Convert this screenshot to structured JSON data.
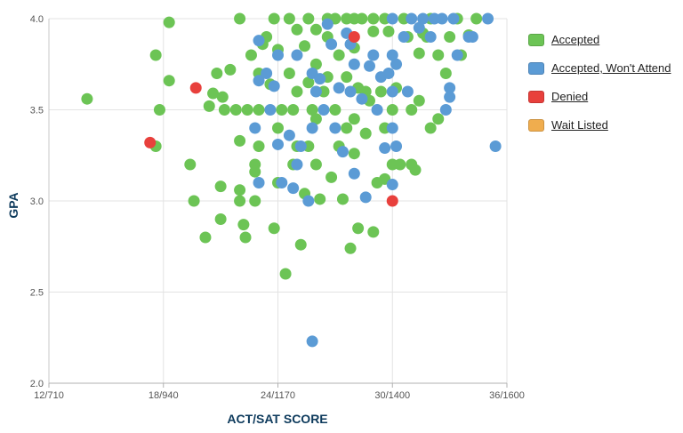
{
  "chart_data": {
    "type": "scatter",
    "xlabel": "ACT/SAT SCORE",
    "ylabel": "GPA",
    "x_ticks": [
      {
        "value": 12,
        "label": "12/710"
      },
      {
        "value": 18,
        "label": "18/940"
      },
      {
        "value": 24,
        "label": "24/1170"
      },
      {
        "value": 30,
        "label": "30/1400"
      },
      {
        "value": 36,
        "label": "36/1600"
      }
    ],
    "y_ticks": [
      {
        "value": 2.0,
        "label": "2.0"
      },
      {
        "value": 2.5,
        "label": "2.5"
      },
      {
        "value": 3.0,
        "label": "3.0"
      },
      {
        "value": 3.5,
        "label": "3.5"
      },
      {
        "value": 4.0,
        "label": "4.0"
      }
    ],
    "xlim": [
      12,
      36
    ],
    "ylim": [
      2.0,
      4.0
    ],
    "grid": true,
    "legend_position": "right",
    "series": [
      {
        "name": "Accepted",
        "color": "#6cc455",
        "points": [
          [
            14.0,
            3.56
          ],
          [
            17.6,
            3.8
          ],
          [
            17.6,
            3.3
          ],
          [
            17.8,
            3.5
          ],
          [
            18.3,
            3.98
          ],
          [
            18.3,
            3.66
          ],
          [
            19.4,
            3.2
          ],
          [
            19.6,
            3.0
          ],
          [
            20.2,
            2.8
          ],
          [
            20.4,
            3.52
          ],
          [
            20.6,
            3.59
          ],
          [
            20.8,
            3.7
          ],
          [
            21.0,
            3.08
          ],
          [
            21.0,
            2.9
          ],
          [
            21.1,
            3.57
          ],
          [
            21.2,
            3.5
          ],
          [
            21.5,
            3.72
          ],
          [
            21.8,
            3.5
          ],
          [
            22.0,
            4.0
          ],
          [
            22.0,
            3.33
          ],
          [
            22.0,
            3.06
          ],
          [
            22.0,
            3.0
          ],
          [
            22.2,
            2.87
          ],
          [
            22.3,
            2.8
          ],
          [
            22.4,
            3.5
          ],
          [
            22.6,
            3.8
          ],
          [
            22.8,
            3.2
          ],
          [
            22.8,
            3.16
          ],
          [
            22.8,
            3.0
          ],
          [
            23.0,
            3.7
          ],
          [
            23.0,
            3.5
          ],
          [
            23.0,
            3.3
          ],
          [
            23.2,
            3.86
          ],
          [
            23.4,
            3.9
          ],
          [
            23.6,
            3.64
          ],
          [
            23.8,
            4.0
          ],
          [
            23.8,
            2.85
          ],
          [
            24.0,
            3.83
          ],
          [
            24.0,
            3.4
          ],
          [
            24.0,
            3.1
          ],
          [
            24.2,
            3.5
          ],
          [
            24.4,
            2.6
          ],
          [
            24.6,
            4.0
          ],
          [
            24.6,
            3.7
          ],
          [
            24.8,
            3.5
          ],
          [
            24.8,
            3.2
          ],
          [
            25.0,
            3.94
          ],
          [
            25.0,
            3.6
          ],
          [
            25.0,
            3.3
          ],
          [
            25.2,
            2.76
          ],
          [
            25.4,
            3.85
          ],
          [
            25.4,
            3.04
          ],
          [
            25.6,
            4.0
          ],
          [
            25.6,
            3.65
          ],
          [
            25.6,
            3.3
          ],
          [
            25.8,
            3.5
          ],
          [
            26.0,
            3.94
          ],
          [
            26.0,
            3.75
          ],
          [
            26.0,
            3.45
          ],
          [
            26.0,
            3.2
          ],
          [
            26.2,
            3.01
          ],
          [
            26.4,
            3.6
          ],
          [
            26.6,
            4.0
          ],
          [
            26.6,
            3.9
          ],
          [
            26.6,
            3.68
          ],
          [
            26.8,
            3.13
          ],
          [
            27.0,
            4.0
          ],
          [
            27.0,
            3.5
          ],
          [
            27.2,
            3.8
          ],
          [
            27.2,
            3.3
          ],
          [
            27.4,
            3.01
          ],
          [
            27.6,
            4.0
          ],
          [
            27.6,
            3.68
          ],
          [
            27.6,
            3.4
          ],
          [
            27.8,
            2.74
          ],
          [
            28.0,
            4.0
          ],
          [
            28.0,
            3.84
          ],
          [
            28.0,
            3.45
          ],
          [
            28.0,
            3.26
          ],
          [
            28.2,
            3.62
          ],
          [
            28.2,
            2.85
          ],
          [
            28.4,
            4.0
          ],
          [
            28.6,
            3.6
          ],
          [
            28.6,
            3.37
          ],
          [
            28.8,
            3.55
          ],
          [
            29.0,
            4.0
          ],
          [
            29.0,
            3.93
          ],
          [
            29.0,
            2.83
          ],
          [
            29.2,
            3.1
          ],
          [
            29.4,
            3.6
          ],
          [
            29.6,
            4.0
          ],
          [
            29.6,
            3.4
          ],
          [
            29.6,
            3.12
          ],
          [
            29.8,
            3.93
          ],
          [
            30.0,
            3.5
          ],
          [
            30.0,
            3.2
          ],
          [
            30.2,
            3.62
          ],
          [
            30.4,
            3.2
          ],
          [
            30.6,
            4.0
          ],
          [
            30.8,
            3.9
          ],
          [
            31.0,
            3.5
          ],
          [
            31.0,
            3.2
          ],
          [
            31.2,
            3.17
          ],
          [
            31.4,
            3.81
          ],
          [
            31.4,
            3.55
          ],
          [
            31.6,
            3.92
          ],
          [
            31.8,
            3.9
          ],
          [
            32.0,
            4.0
          ],
          [
            32.0,
            3.4
          ],
          [
            32.4,
            3.8
          ],
          [
            32.4,
            3.45
          ],
          [
            32.8,
            3.7
          ],
          [
            33.0,
            3.9
          ],
          [
            33.4,
            4.0
          ],
          [
            33.6,
            3.8
          ],
          [
            34.0,
            3.91
          ],
          [
            34.4,
            4.0
          ]
        ]
      },
      {
        "name": "Accepted, Won't Attend",
        "color": "#5b9bd5",
        "points": [
          [
            22.8,
            3.4
          ],
          [
            23.0,
            3.88
          ],
          [
            23.0,
            3.66
          ],
          [
            23.0,
            3.1
          ],
          [
            23.4,
            3.7
          ],
          [
            23.6,
            3.5
          ],
          [
            23.8,
            3.63
          ],
          [
            24.0,
            3.31
          ],
          [
            24.0,
            3.8
          ],
          [
            24.2,
            3.1
          ],
          [
            24.6,
            3.36
          ],
          [
            24.8,
            3.07
          ],
          [
            25.0,
            3.8
          ],
          [
            25.0,
            3.2
          ],
          [
            25.2,
            3.3
          ],
          [
            25.6,
            3.0
          ],
          [
            25.8,
            3.7
          ],
          [
            25.8,
            3.4
          ],
          [
            25.8,
            2.23
          ],
          [
            26.0,
            3.6
          ],
          [
            26.2,
            3.67
          ],
          [
            26.4,
            3.5
          ],
          [
            26.6,
            3.97
          ],
          [
            26.8,
            3.86
          ],
          [
            27.0,
            3.4
          ],
          [
            27.2,
            3.62
          ],
          [
            27.4,
            3.27
          ],
          [
            27.6,
            3.92
          ],
          [
            27.8,
            3.86
          ],
          [
            27.8,
            3.6
          ],
          [
            28.0,
            3.75
          ],
          [
            28.0,
            3.15
          ],
          [
            28.4,
            3.56
          ],
          [
            28.6,
            3.02
          ],
          [
            28.8,
            3.74
          ],
          [
            29.0,
            3.8
          ],
          [
            29.2,
            3.5
          ],
          [
            29.4,
            3.68
          ],
          [
            29.6,
            3.29
          ],
          [
            29.8,
            3.7
          ],
          [
            30.0,
            4.0
          ],
          [
            30.0,
            3.8
          ],
          [
            30.0,
            3.6
          ],
          [
            30.0,
            3.4
          ],
          [
            30.0,
            3.09
          ],
          [
            30.2,
            3.75
          ],
          [
            30.2,
            3.3
          ],
          [
            30.6,
            3.9
          ],
          [
            30.8,
            3.6
          ],
          [
            31.0,
            4.0
          ],
          [
            31.4,
            3.95
          ],
          [
            31.6,
            4.0
          ],
          [
            32.0,
            3.9
          ],
          [
            32.2,
            4.0
          ],
          [
            32.6,
            4.0
          ],
          [
            32.8,
            3.5
          ],
          [
            33.0,
            3.62
          ],
          [
            33.0,
            3.57
          ],
          [
            33.2,
            4.0
          ],
          [
            33.4,
            3.8
          ],
          [
            34.0,
            3.9
          ],
          [
            34.2,
            3.9
          ],
          [
            35.0,
            4.0
          ],
          [
            35.4,
            3.3
          ]
        ]
      },
      {
        "name": "Denied",
        "color": "#e8403c",
        "points": [
          [
            17.3,
            3.32
          ],
          [
            19.7,
            3.62
          ],
          [
            28.0,
            3.9
          ],
          [
            30.0,
            3.0
          ]
        ]
      },
      {
        "name": "Wait Listed",
        "color": "#f0ad4e",
        "points": []
      }
    ]
  }
}
